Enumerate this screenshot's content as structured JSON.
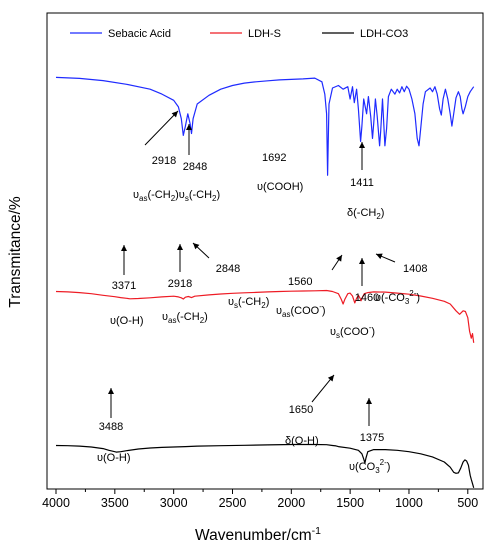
{
  "chart_data": {
    "type": "line",
    "xlabel": "Wavenumber/cm",
    "xlabel_sup": "-1",
    "ylabel": "Transmitance/%",
    "xlim": [
      4000,
      450
    ],
    "x_reversed": true,
    "x_ticks": [
      "4000",
      "3500",
      "3000",
      "2500",
      "2000",
      "1500",
      "1000",
      "500"
    ],
    "x_tick_values": [
      4000,
      3500,
      3000,
      2500,
      2000,
      1500,
      1000,
      500
    ],
    "y_ticks_shown": false,
    "legend_position": "top",
    "series": [
      {
        "name": "Sebacic Acid",
        "color": "#1f2bff",
        "points": [
          [
            4000,
            0.848
          ],
          [
            3800,
            0.844
          ],
          [
            3600,
            0.835
          ],
          [
            3400,
            0.82
          ],
          [
            3200,
            0.8
          ],
          [
            3100,
            0.78
          ],
          [
            3000,
            0.755
          ],
          [
            2960,
            0.728
          ],
          [
            2935,
            0.68
          ],
          [
            2918,
            0.612
          ],
          [
            2900,
            0.65
          ],
          [
            2880,
            0.7
          ],
          [
            2860,
            0.66
          ],
          [
            2848,
            0.62
          ],
          [
            2835,
            0.68
          ],
          [
            2800,
            0.74
          ],
          [
            2700,
            0.775
          ],
          [
            2600,
            0.8
          ],
          [
            2500,
            0.815
          ],
          [
            2400,
            0.825
          ],
          [
            2300,
            0.83
          ],
          [
            2200,
            0.834
          ],
          [
            2100,
            0.838
          ],
          [
            2000,
            0.84
          ],
          [
            1900,
            0.842
          ],
          [
            1800,
            0.845
          ],
          [
            1740,
            0.83
          ],
          [
            1715,
            0.78
          ],
          [
            1700,
            0.7
          ],
          [
            1692,
            0.45
          ],
          [
            1686,
            0.6
          ],
          [
            1680,
            0.74
          ],
          [
            1650,
            0.805
          ],
          [
            1600,
            0.815
          ],
          [
            1560,
            0.8
          ],
          [
            1520,
            0.81
          ],
          [
            1500,
            0.76
          ],
          [
            1480,
            0.81
          ],
          [
            1465,
            0.745
          ],
          [
            1445,
            0.8
          ],
          [
            1430,
            0.72
          ],
          [
            1411,
            0.588
          ],
          [
            1400,
            0.65
          ],
          [
            1385,
            0.76
          ],
          [
            1360,
            0.7
          ],
          [
            1345,
            0.77
          ],
          [
            1325,
            0.69
          ],
          [
            1310,
            0.6
          ],
          [
            1300,
            0.66
          ],
          [
            1285,
            0.76
          ],
          [
            1270,
            0.69
          ],
          [
            1250,
            0.57
          ],
          [
            1240,
            0.63
          ],
          [
            1225,
            0.76
          ],
          [
            1205,
            0.57
          ],
          [
            1190,
            0.64
          ],
          [
            1175,
            0.77
          ],
          [
            1150,
            0.8
          ],
          [
            1120,
            0.78
          ],
          [
            1100,
            0.8
          ],
          [
            1080,
            0.785
          ],
          [
            1060,
            0.81
          ],
          [
            1040,
            0.79
          ],
          [
            1020,
            0.812
          ],
          [
            1000,
            0.8
          ],
          [
            975,
            0.76
          ],
          [
            950,
            0.7
          ],
          [
            930,
            0.6
          ],
          [
            915,
            0.57
          ],
          [
            900,
            0.64
          ],
          [
            880,
            0.74
          ],
          [
            860,
            0.79
          ],
          [
            820,
            0.805
          ],
          [
            800,
            0.79
          ],
          [
            780,
            0.81
          ],
          [
            760,
            0.78
          ],
          [
            740,
            0.72
          ],
          [
            725,
            0.695
          ],
          [
            710,
            0.76
          ],
          [
            690,
            0.8
          ],
          [
            670,
            0.76
          ],
          [
            650,
            0.7
          ],
          [
            635,
            0.65
          ],
          [
            620,
            0.7
          ],
          [
            600,
            0.765
          ],
          [
            580,
            0.79
          ],
          [
            565,
            0.77
          ],
          [
            550,
            0.72
          ],
          [
            540,
            0.7
          ],
          [
            520,
            0.73
          ],
          [
            500,
            0.77
          ],
          [
            480,
            0.79
          ],
          [
            450,
            0.81
          ]
        ]
      },
      {
        "name": "LDH-S",
        "color": "#ee1c25",
        "points": [
          [
            4000,
            0.555
          ],
          [
            3900,
            0.553
          ],
          [
            3800,
            0.55
          ],
          [
            3700,
            0.545
          ],
          [
            3600,
            0.538
          ],
          [
            3500,
            0.532
          ],
          [
            3450,
            0.528
          ],
          [
            3400,
            0.525
          ],
          [
            3371,
            0.523
          ],
          [
            3300,
            0.524
          ],
          [
            3200,
            0.527
          ],
          [
            3100,
            0.531
          ],
          [
            3000,
            0.534
          ],
          [
            2960,
            0.531
          ],
          [
            2935,
            0.527
          ],
          [
            2918,
            0.522
          ],
          [
            2900,
            0.53
          ],
          [
            2875,
            0.533
          ],
          [
            2848,
            0.528
          ],
          [
            2820,
            0.534
          ],
          [
            2700,
            0.54
          ],
          [
            2600,
            0.544
          ],
          [
            2500,
            0.547
          ],
          [
            2400,
            0.549
          ],
          [
            2300,
            0.551
          ],
          [
            2200,
            0.553
          ],
          [
            2100,
            0.555
          ],
          [
            2000,
            0.556
          ],
          [
            1900,
            0.557
          ],
          [
            1800,
            0.558
          ],
          [
            1700,
            0.559
          ],
          [
            1650,
            0.555
          ],
          [
            1600,
            0.545
          ],
          [
            1575,
            0.52
          ],
          [
            1560,
            0.5
          ],
          [
            1545,
            0.52
          ],
          [
            1520,
            0.545
          ],
          [
            1500,
            0.548
          ],
          [
            1480,
            0.535
          ],
          [
            1460,
            0.505
          ],
          [
            1445,
            0.525
          ],
          [
            1430,
            0.538
          ],
          [
            1415,
            0.525
          ],
          [
            1408,
            0.514
          ],
          [
            1395,
            0.53
          ],
          [
            1380,
            0.545
          ],
          [
            1350,
            0.55
          ],
          [
            1300,
            0.553
          ],
          [
            1200,
            0.552
          ],
          [
            1100,
            0.548
          ],
          [
            1000,
            0.543
          ],
          [
            900,
            0.535
          ],
          [
            800,
            0.525
          ],
          [
            700,
            0.512
          ],
          [
            650,
            0.5
          ],
          [
            600,
            0.47
          ],
          [
            570,
            0.455
          ],
          [
            540,
            0.47
          ],
          [
            520,
            0.467
          ],
          [
            500,
            0.44
          ],
          [
            485,
            0.38
          ],
          [
            470,
            0.35
          ],
          [
            460,
            0.37
          ],
          [
            450,
            0.33
          ]
        ]
      },
      {
        "name": "LDH-CO3",
        "color": "#000000",
        "points": [
          [
            4000,
            0.245
          ],
          [
            3900,
            0.244
          ],
          [
            3800,
            0.242
          ],
          [
            3700,
            0.238
          ],
          [
            3600,
            0.23
          ],
          [
            3550,
            0.222
          ],
          [
            3500,
            0.215
          ],
          [
            3488,
            0.213
          ],
          [
            3450,
            0.215
          ],
          [
            3400,
            0.22
          ],
          [
            3300,
            0.228
          ],
          [
            3200,
            0.233
          ],
          [
            3100,
            0.236
          ],
          [
            3000,
            0.238
          ],
          [
            2900,
            0.24
          ],
          [
            2800,
            0.242
          ],
          [
            2600,
            0.244
          ],
          [
            2400,
            0.246
          ],
          [
            2200,
            0.248
          ],
          [
            2000,
            0.25
          ],
          [
            1800,
            0.25
          ],
          [
            1700,
            0.249
          ],
          [
            1650,
            0.245
          ],
          [
            1620,
            0.243
          ],
          [
            1600,
            0.24
          ],
          [
            1500,
            0.232
          ],
          [
            1430,
            0.222
          ],
          [
            1400,
            0.205
          ],
          [
            1385,
            0.18
          ],
          [
            1375,
            0.16
          ],
          [
            1365,
            0.185
          ],
          [
            1350,
            0.215
          ],
          [
            1300,
            0.225
          ],
          [
            1200,
            0.225
          ],
          [
            1100,
            0.222
          ],
          [
            1000,
            0.215
          ],
          [
            900,
            0.205
          ],
          [
            800,
            0.19
          ],
          [
            700,
            0.165
          ],
          [
            650,
            0.14
          ],
          [
            620,
            0.115
          ],
          [
            600,
            0.11
          ],
          [
            580,
            0.112
          ],
          [
            560,
            0.135
          ],
          [
            540,
            0.165
          ],
          [
            525,
            0.175
          ],
          [
            510,
            0.17
          ],
          [
            495,
            0.15
          ],
          [
            480,
            0.1
          ],
          [
            470,
            0.08
          ],
          [
            460,
            0.06
          ],
          [
            450,
            0.04
          ]
        ]
      }
    ],
    "annotations": [
      {
        "id": "sa-2918",
        "x": 2918,
        "series": 0,
        "text": "2918"
      },
      {
        "id": "sa-2848",
        "x": 2848,
        "series": 0,
        "text": "2848"
      },
      {
        "id": "sa-vibr",
        "parts": [
          {
            "t": "υ"
          },
          {
            "t": "as",
            "sub": true
          },
          {
            "t": "(-CH"
          },
          {
            "t": "2",
            "sub": true
          },
          {
            "t": ")υ"
          },
          {
            "t": "s",
            "sub": true
          },
          {
            "t": "(-CH"
          },
          {
            "t": "2",
            "sub": true
          },
          {
            "t": ")"
          }
        ]
      },
      {
        "id": "sa-1692",
        "text": "1692"
      },
      {
        "id": "sa-cooh",
        "parts": [
          {
            "t": "υ(COOH)"
          }
        ]
      },
      {
        "id": "sa-1411",
        "x": 1411,
        "series": 0,
        "text": "1411"
      },
      {
        "id": "sa-delta",
        "parts": [
          {
            "t": "δ(-CH"
          },
          {
            "t": "2",
            "sub": true
          },
          {
            "t": ")"
          }
        ]
      },
      {
        "id": "ldhs-3371",
        "x": 3371,
        "series": 1,
        "text": "3371"
      },
      {
        "id": "ldhs-oh",
        "parts": [
          {
            "t": "υ(O-H)"
          }
        ]
      },
      {
        "id": "ldhs-2918",
        "x": 2918,
        "series": 1,
        "text": "2918"
      },
      {
        "id": "ldhs-ch2as",
        "parts": [
          {
            "t": "υ"
          },
          {
            "t": "as",
            "sub": true
          },
          {
            "t": "(-CH"
          },
          {
            "t": "2",
            "sub": true
          },
          {
            "t": ")"
          }
        ]
      },
      {
        "id": "ldhs-2848",
        "x": 2848,
        "series": 1,
        "text": "2848"
      },
      {
        "id": "ldhs-ch2s",
        "parts": [
          {
            "t": "υ"
          },
          {
            "t": "s",
            "sub": true
          },
          {
            "t": "(-CH"
          },
          {
            "t": "2",
            "sub": true
          },
          {
            "t": ")"
          }
        ]
      },
      {
        "id": "ldhs-1560",
        "text": "1560"
      },
      {
        "id": "ldhs-cooas",
        "parts": [
          {
            "t": "υ"
          },
          {
            "t": "as",
            "sub": true
          },
          {
            "t": "(COO"
          },
          {
            "t": "-",
            "sup": true
          },
          {
            "t": ")"
          }
        ]
      },
      {
        "id": "ldhs-1460",
        "x": 1460,
        "series": 1,
        "text": "1460"
      },
      {
        "id": "ldhs-coos",
        "parts": [
          {
            "t": "υ"
          },
          {
            "t": "s",
            "sub": true
          },
          {
            "t": "(COO"
          },
          {
            "t": "-",
            "sup": true
          },
          {
            "t": ")"
          }
        ]
      },
      {
        "id": "ldhs-1408",
        "x": 1408,
        "series": 1,
        "text": "1408"
      },
      {
        "id": "ldhs-co3",
        "parts": [
          {
            "t": "υ(-CO"
          },
          {
            "t": "3",
            "sub": true
          },
          {
            "t": "2-",
            "sup": true
          },
          {
            "t": ")"
          }
        ]
      },
      {
        "id": "co3-3488",
        "x": 3488,
        "series": 2,
        "text": "3488"
      },
      {
        "id": "co3-oh",
        "parts": [
          {
            "t": "υ(O-H)"
          }
        ]
      },
      {
        "id": "co3-1650",
        "x": 1650,
        "series": 2,
        "text": "1650"
      },
      {
        "id": "co3-delta",
        "parts": [
          {
            "t": "δ(O-H)"
          }
        ]
      },
      {
        "id": "co3-1375",
        "x": 1375,
        "series": 2,
        "text": "1375"
      },
      {
        "id": "co3-co3",
        "parts": [
          {
            "t": "υ(CO"
          },
          {
            "t": "3",
            "sub": true
          },
          {
            "t": "2-",
            "sup": true
          },
          {
            "t": ")"
          }
        ]
      }
    ]
  }
}
